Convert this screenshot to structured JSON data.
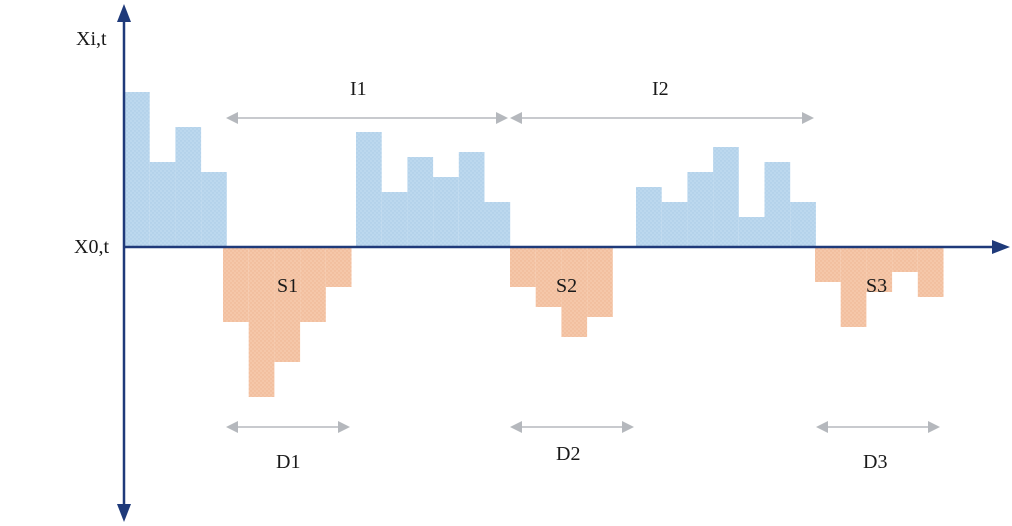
{
  "labels": {
    "y_axis": "Xi,t",
    "baseline": "X0,t",
    "interval_1": "I1",
    "interval_2": "I2",
    "deficit_1": "S1",
    "deficit_2": "S2",
    "deficit_3": "S3",
    "duration_1": "D1",
    "duration_2": "D2",
    "duration_3": "D3"
  },
  "colors": {
    "axis": "#1f3a7a",
    "surplus_fill": "#bcd8ee",
    "deficit_fill": "#f5c7a9",
    "span_arrow": "#b5b8bd",
    "text": "#1a1a1a"
  },
  "series": {
    "surplus_groups": [
      [
        3.1,
        1.7,
        2.4,
        1.5
      ],
      [
        2.3,
        1.1,
        1.8,
        1.4,
        1.9,
        0.9
      ],
      [
        1.2,
        0.9,
        1.5,
        2.0,
        0.6,
        1.7,
        0.9
      ]
    ],
    "deficit_groups": [
      [
        -1.5,
        -3.0,
        -2.3,
        -1.5,
        -0.8
      ],
      [
        -0.8,
        -1.2,
        -1.8,
        -1.4
      ],
      [
        -0.7,
        -1.6,
        -0.9,
        -0.5,
        -1.0
      ]
    ]
  }
}
